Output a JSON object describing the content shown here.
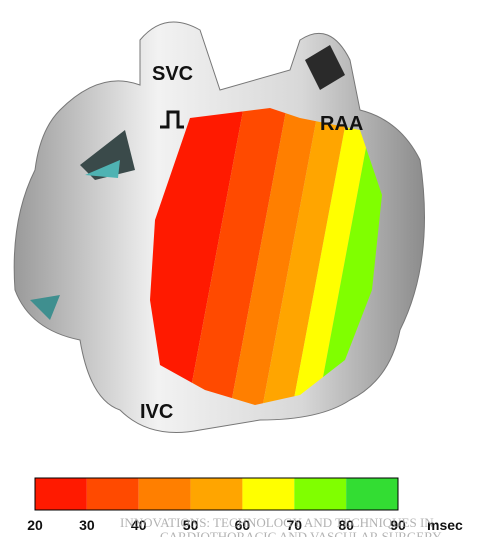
{
  "labels": {
    "svc": "SVC",
    "raa": "RAA",
    "ivc": "IVC"
  },
  "color_scale": {
    "colors": [
      "#ff1a00",
      "#ff4a00",
      "#ff7f00",
      "#ffa500",
      "#ffff00",
      "#80ff00",
      "#33dd33"
    ],
    "ticks": [
      20,
      30,
      40,
      50,
      60,
      70,
      80,
      90
    ],
    "unit": "msec"
  },
  "watermark": [
    "INNOVATIONS: TECHNOLOGY AND TECHNIQUES IN",
    "CARDIOTHORACIC AND VASCULAR SURGERY"
  ]
}
